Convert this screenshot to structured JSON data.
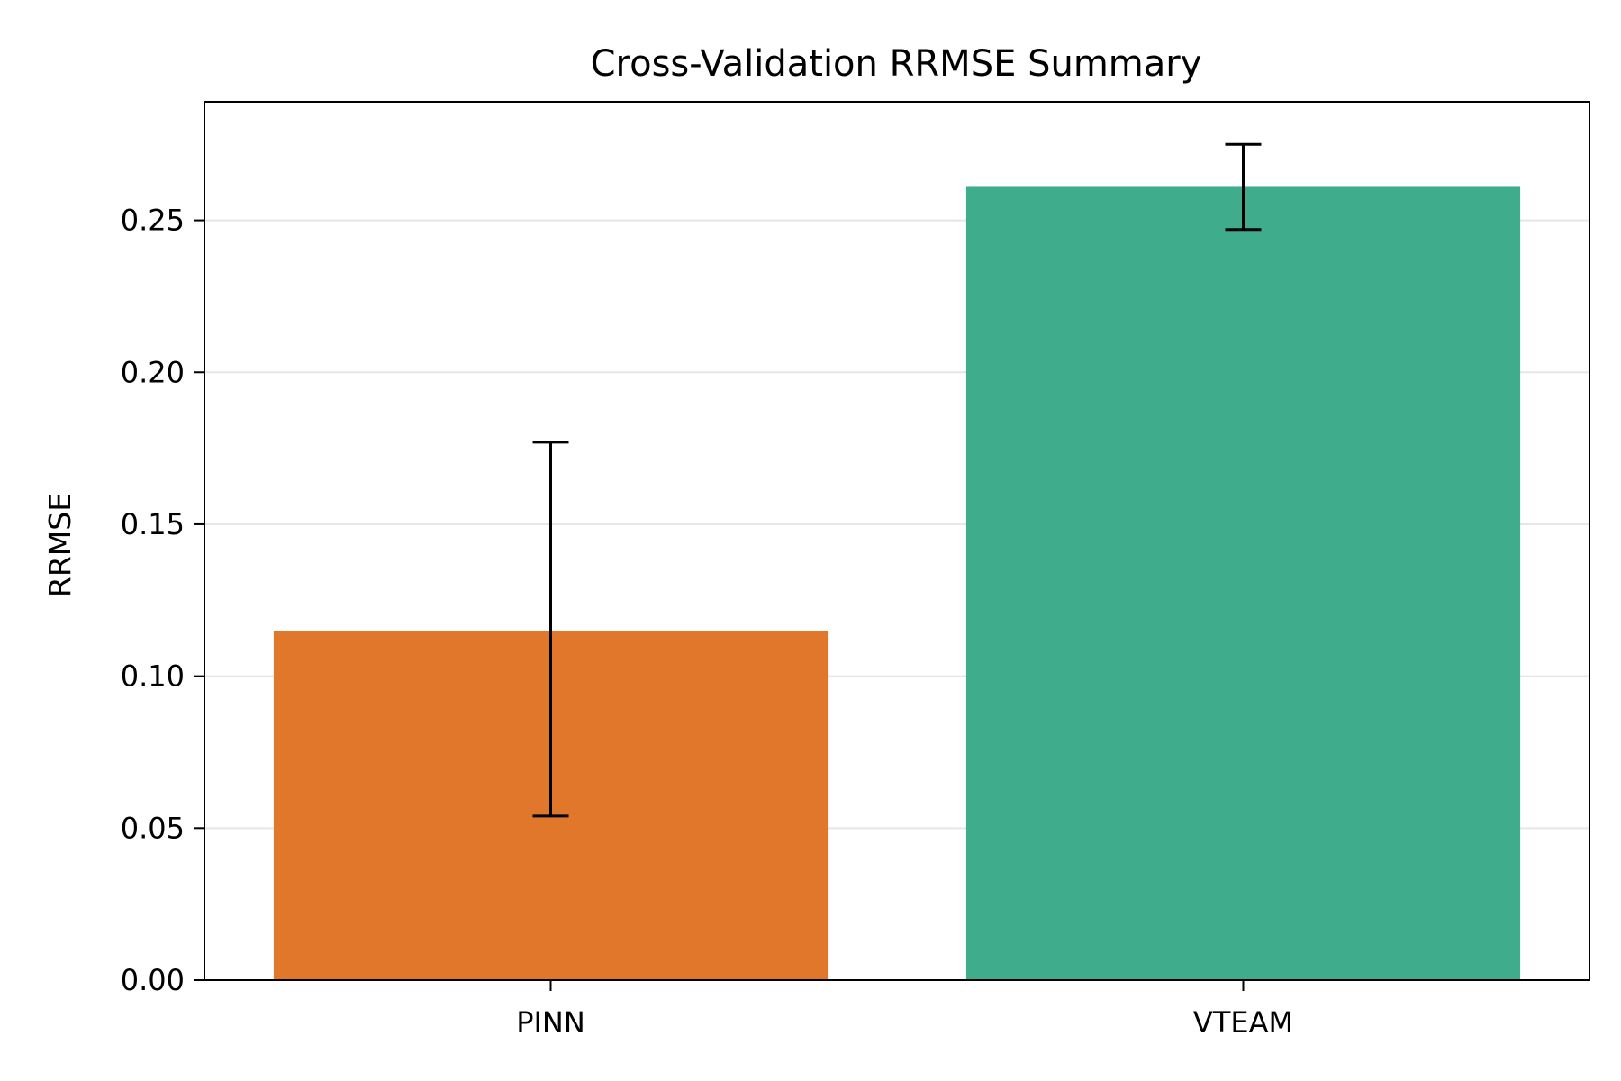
{
  "chart_data": {
    "type": "bar",
    "title": "Cross-Validation RRMSE Summary",
    "xlabel": "",
    "ylabel": "RRMSE",
    "categories": [
      "PINN",
      "VTEAM"
    ],
    "values": [
      0.115,
      0.261
    ],
    "error_low": [
      0.054,
      0.247
    ],
    "error_high": [
      0.177,
      0.275
    ],
    "colors": [
      "#e0772a",
      "#3fac8c"
    ],
    "ylim": [
      0,
      0.289
    ],
    "yticks": [
      0.0,
      0.05,
      0.1,
      0.15,
      0.2,
      0.25
    ],
    "ytick_labels": [
      "0.00",
      "0.05",
      "0.10",
      "0.15",
      "0.20",
      "0.25"
    ],
    "grid": "horizontal",
    "legend": "none"
  }
}
